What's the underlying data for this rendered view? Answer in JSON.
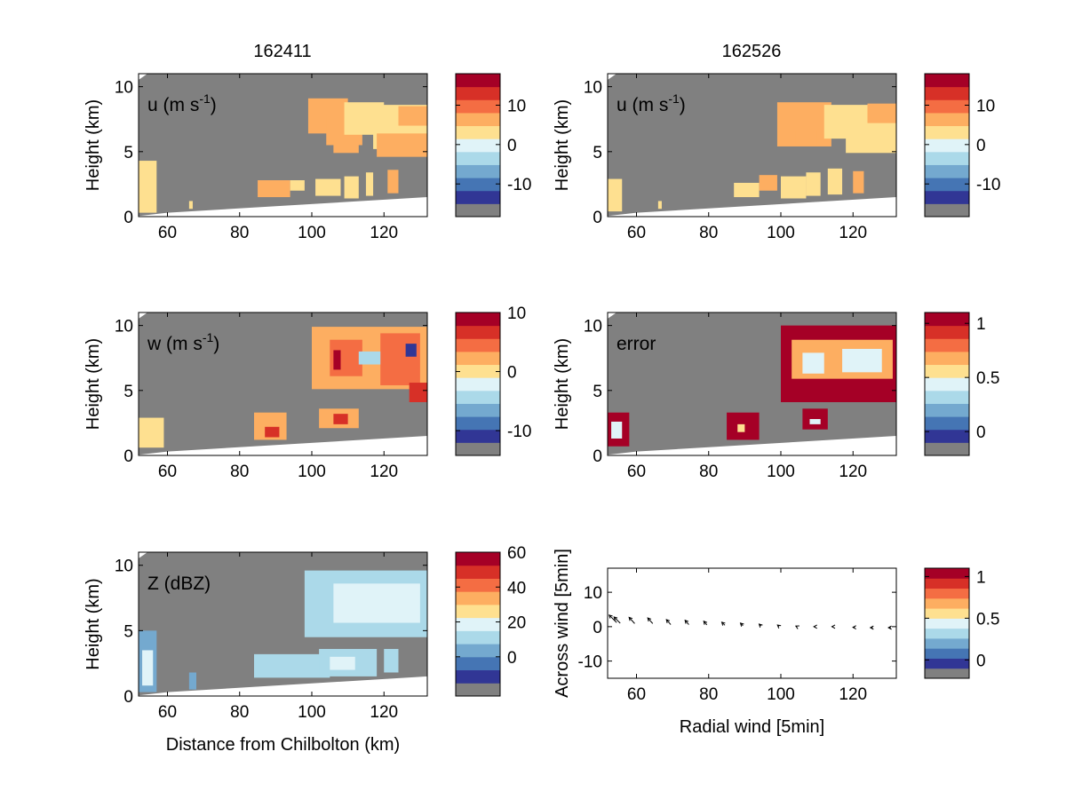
{
  "figure": {
    "column_titles": [
      "162411",
      "162526"
    ],
    "colors": {
      "background_gray": "#808080",
      "ground_white": "#ffffff",
      "colormap": [
        "#808080",
        "#313695",
        "#4575b4",
        "#74a9cf",
        "#abd9e9",
        "#e0f3f8",
        "#fee090",
        "#fdae61",
        "#f46d43",
        "#d73027",
        "#a50026"
      ]
    }
  },
  "chart_data": [
    {
      "type": "heatmap",
      "id": "u_162411",
      "title": "162411",
      "field_label": "u (m s",
      "field_label_sup": "-1",
      "field_label_end": ")",
      "xlabel": "",
      "ylabel": "Height (km)",
      "x_ticks": [
        "60",
        "80",
        "100",
        "120"
      ],
      "y_ticks": [
        "0",
        "5",
        "10"
      ],
      "xlim": [
        52,
        132
      ],
      "ylim": [
        0,
        11
      ],
      "colorbar": {
        "ticks": [
          "10",
          "0",
          "-10"
        ],
        "tick_values": [
          10,
          0,
          -10
        ],
        "range": [
          -15,
          18
        ]
      },
      "cells": [
        {
          "x0": 52,
          "x1": 57,
          "y0": 0.3,
          "y1": 4.3,
          "value": 4
        },
        {
          "x0": 66,
          "x1": 67,
          "y0": 0.6,
          "y1": 1.2,
          "value": 4
        },
        {
          "x0": 85,
          "x1": 94,
          "y0": 1.5,
          "y1": 2.8,
          "value": 5
        },
        {
          "x0": 94,
          "x1": 98,
          "y0": 2.0,
          "y1": 2.8,
          "value": 3
        },
        {
          "x0": 101,
          "x1": 108,
          "y0": 1.6,
          "y1": 2.9,
          "value": 2
        },
        {
          "x0": 109,
          "x1": 113,
          "y0": 1.4,
          "y1": 3.1,
          "value": 3
        },
        {
          "x0": 115,
          "x1": 117,
          "y0": 1.6,
          "y1": 3.4,
          "value": 2
        },
        {
          "x0": 121,
          "x1": 124,
          "y0": 1.8,
          "y1": 3.6,
          "value": 5
        },
        {
          "x0": 99,
          "x1": 110,
          "y0": 6.4,
          "y1": 9.1,
          "value": 5
        },
        {
          "x0": 104,
          "x1": 114,
          "y0": 5.5,
          "y1": 7.6,
          "value": 7
        },
        {
          "x0": 109,
          "x1": 120,
          "y0": 6.3,
          "y1": 8.8,
          "value": 2
        },
        {
          "x0": 117,
          "x1": 132,
          "y0": 5.2,
          "y1": 8.6,
          "value": 2
        },
        {
          "x0": 118,
          "x1": 132,
          "y0": 4.6,
          "y1": 6.4,
          "value": 5
        },
        {
          "x0": 124,
          "x1": 132,
          "y0": 7.0,
          "y1": 8.5,
          "value": 5
        },
        {
          "x0": 106,
          "x1": 113,
          "y0": 4.9,
          "y1": 5.9,
          "value": 7
        }
      ]
    },
    {
      "type": "heatmap",
      "id": "u_162526",
      "title": "162526",
      "field_label": "u (m s",
      "field_label_sup": "-1",
      "field_label_end": ")",
      "xlabel": "",
      "ylabel": "Height (km)",
      "x_ticks": [
        "60",
        "80",
        "100",
        "120"
      ],
      "y_ticks": [
        "0",
        "5",
        "10"
      ],
      "xlim": [
        52,
        132
      ],
      "ylim": [
        0,
        11
      ],
      "colorbar": {
        "ticks": [
          "10",
          "0",
          "-10"
        ],
        "tick_values": [
          10,
          0,
          -10
        ],
        "range": [
          -15,
          18
        ]
      },
      "cells": [
        {
          "x0": 52,
          "x1": 56,
          "y0": 0.4,
          "y1": 2.9,
          "value": 4
        },
        {
          "x0": 66,
          "x1": 67,
          "y0": 0.6,
          "y1": 1.2,
          "value": 4
        },
        {
          "x0": 87,
          "x1": 94,
          "y0": 1.5,
          "y1": 2.6,
          "value": 2
        },
        {
          "x0": 94,
          "x1": 99,
          "y0": 2.0,
          "y1": 3.2,
          "value": 5
        },
        {
          "x0": 100,
          "x1": 107,
          "y0": 1.4,
          "y1": 3.1,
          "value": 2
        },
        {
          "x0": 107,
          "x1": 111,
          "y0": 1.6,
          "y1": 3.4,
          "value": 2
        },
        {
          "x0": 113,
          "x1": 117,
          "y0": 1.7,
          "y1": 3.7,
          "value": 2
        },
        {
          "x0": 120,
          "x1": 123,
          "y0": 1.8,
          "y1": 3.5,
          "value": 5
        },
        {
          "x0": 99,
          "x1": 114,
          "y0": 5.4,
          "y1": 8.8,
          "value": 5
        },
        {
          "x0": 112,
          "x1": 124,
          "y0": 6.0,
          "y1": 8.6,
          "value": 2
        },
        {
          "x0": 118,
          "x1": 132,
          "y0": 4.9,
          "y1": 7.6,
          "value": 2
        },
        {
          "x0": 124,
          "x1": 132,
          "y0": 7.2,
          "y1": 8.7,
          "value": 5
        },
        {
          "x0": 104,
          "x1": 110,
          "y0": 5.6,
          "y1": 6.6,
          "value": 7
        }
      ]
    },
    {
      "type": "heatmap",
      "id": "w_162411",
      "field_label": "w (m s",
      "field_label_sup": "-1",
      "field_label_end": ")",
      "xlabel": "",
      "ylabel": "Height (km)",
      "x_ticks": [
        "60",
        "80",
        "100",
        "120"
      ],
      "y_ticks": [
        "0",
        "5",
        "10"
      ],
      "xlim": [
        52,
        132
      ],
      "ylim": [
        0,
        11
      ],
      "colorbar": {
        "ticks": [
          "10",
          "0",
          "-10"
        ],
        "tick_values": [
          10,
          0,
          -10
        ],
        "range": [
          -12,
          10
        ]
      },
      "cells": [
        {
          "x0": 52,
          "x1": 59,
          "y0": 0.6,
          "y1": 2.9,
          "value": 1
        },
        {
          "x0": 84,
          "x1": 93,
          "y0": 1.2,
          "y1": 3.3,
          "value": 3
        },
        {
          "x0": 87,
          "x1": 91,
          "y0": 1.4,
          "y1": 2.2,
          "value": 7
        },
        {
          "x0": 102,
          "x1": 113,
          "y0": 2.1,
          "y1": 3.6,
          "value": 2
        },
        {
          "x0": 106,
          "x1": 110,
          "y0": 2.4,
          "y1": 3.2,
          "value": 6
        },
        {
          "x0": 100,
          "x1": 132,
          "y0": 5.1,
          "y1": 9.9,
          "value": 2
        },
        {
          "x0": 105,
          "x1": 114,
          "y0": 6.1,
          "y1": 8.9,
          "value": 4
        },
        {
          "x0": 106,
          "x1": 108,
          "y0": 6.6,
          "y1": 8.1,
          "value": 9
        },
        {
          "x0": 119,
          "x1": 130,
          "y0": 5.4,
          "y1": 9.4,
          "value": 4
        },
        {
          "x0": 126,
          "x1": 129,
          "y0": 7.6,
          "y1": 8.6,
          "value": -10
        },
        {
          "x0": 113,
          "x1": 119,
          "y0": 7.0,
          "y1": 8.0,
          "value": -4
        },
        {
          "x0": 127,
          "x1": 132,
          "y0": 4.1,
          "y1": 5.6,
          "value": 7
        }
      ]
    },
    {
      "type": "heatmap",
      "id": "error_162526",
      "field_label": "error",
      "xlabel": "",
      "ylabel": "Height (km)",
      "x_ticks": [
        "60",
        "80",
        "100",
        "120"
      ],
      "y_ticks": [
        "0",
        "5",
        "10"
      ],
      "xlim": [
        52,
        132
      ],
      "ylim": [
        0,
        11
      ],
      "colorbar": {
        "ticks": [
          "1",
          "0.5",
          "0"
        ],
        "tick_values": [
          1,
          0.5,
          0
        ],
        "range": [
          -0.1,
          1.1
        ]
      },
      "cells": [
        {
          "x0": 52,
          "x1": 58,
          "y0": 0.7,
          "y1": 3.3,
          "value": 1.05
        },
        {
          "x0": 53,
          "x1": 56,
          "y0": 1.3,
          "y1": 2.6,
          "value": 0.4
        },
        {
          "x0": 85,
          "x1": 94,
          "y0": 1.2,
          "y1": 3.3,
          "value": 1.05
        },
        {
          "x0": 88,
          "x1": 90,
          "y0": 1.8,
          "y1": 2.4,
          "value": 0.6
        },
        {
          "x0": 106,
          "x1": 113,
          "y0": 2.0,
          "y1": 3.6,
          "value": 1.05
        },
        {
          "x0": 108,
          "x1": 111,
          "y0": 2.4,
          "y1": 2.8,
          "value": 0.4
        },
        {
          "x0": 100,
          "x1": 132,
          "y0": 4.1,
          "y1": 10.0,
          "value": 1.05
        },
        {
          "x0": 103,
          "x1": 131,
          "y0": 5.9,
          "y1": 8.9,
          "value": 0.7
        },
        {
          "x0": 106,
          "x1": 112,
          "y0": 6.3,
          "y1": 7.9,
          "value": 0.45
        },
        {
          "x0": 117,
          "x1": 128,
          "y0": 6.4,
          "y1": 8.2,
          "value": 0.45
        }
      ]
    },
    {
      "type": "heatmap",
      "id": "Z_162411",
      "field_label": "Z (dBZ)",
      "xlabel": "Distance from Chilbolton (km)",
      "ylabel": "Height (km)",
      "x_ticks": [
        "60",
        "80",
        "100",
        "120"
      ],
      "y_ticks": [
        "0",
        "5",
        "10"
      ],
      "xlim": [
        52,
        132
      ],
      "ylim": [
        0,
        11
      ],
      "colorbar": {
        "ticks": [
          "60",
          "40",
          "20",
          "0"
        ],
        "tick_values": [
          60,
          40,
          20,
          0
        ],
        "range": [
          -15,
          60
        ]
      },
      "cells": [
        {
          "x0": 52,
          "x1": 57,
          "y0": 0.3,
          "y1": 5.0,
          "value": 2
        },
        {
          "x0": 53,
          "x1": 56,
          "y0": 0.8,
          "y1": 3.5,
          "value": 18
        },
        {
          "x0": 66,
          "x1": 68,
          "y0": 0.5,
          "y1": 1.8,
          "value": 5
        },
        {
          "x0": 84,
          "x1": 105,
          "y0": 1.4,
          "y1": 3.2,
          "value": 8
        },
        {
          "x0": 102,
          "x1": 118,
          "y0": 1.5,
          "y1": 3.6,
          "value": 12
        },
        {
          "x0": 105,
          "x1": 112,
          "y0": 2.0,
          "y1": 3.0,
          "value": 18
        },
        {
          "x0": 120,
          "x1": 124,
          "y0": 1.8,
          "y1": 3.6,
          "value": 10
        },
        {
          "x0": 98,
          "x1": 132,
          "y0": 4.5,
          "y1": 9.6,
          "value": 10
        },
        {
          "x0": 106,
          "x1": 130,
          "y0": 5.6,
          "y1": 8.6,
          "value": 17
        },
        {
          "x0": 113,
          "x1": 123,
          "y0": 6.6,
          "y1": 8.0,
          "value": 22
        }
      ]
    },
    {
      "type": "quiver",
      "id": "wind_vectors",
      "xlabel": "Radial wind [5min]",
      "ylabel": "Across wind [5min]",
      "x_ticks": [
        "60",
        "80",
        "100",
        "120"
      ],
      "y_ticks": [
        "10",
        "0",
        "-10"
      ],
      "xlim": [
        52,
        132
      ],
      "ylim": [
        -15,
        17
      ],
      "colorbar": {
        "ticks": [
          "1",
          "0.5",
          "0"
        ],
        "tick_values": [
          1,
          0.5,
          0
        ],
        "range": [
          -0.1,
          1.1
        ]
      },
      "arrows": [
        {
          "x": 54.5,
          "y": 1.2,
          "u": -1.2,
          "v": 1.2
        },
        {
          "x": 55.5,
          "y": 1.0,
          "u": -1.0,
          "v": 1.0
        },
        {
          "x": 59.5,
          "y": 0.9,
          "u": -0.9,
          "v": 1.0
        },
        {
          "x": 64.5,
          "y": 0.9,
          "u": -0.8,
          "v": 0.9
        },
        {
          "x": 69.5,
          "y": 0.6,
          "u": -0.7,
          "v": 0.8
        },
        {
          "x": 74.5,
          "y": 0.6,
          "u": -0.6,
          "v": 0.7
        },
        {
          "x": 79.5,
          "y": 0.5,
          "u": -0.5,
          "v": 0.6
        },
        {
          "x": 84.5,
          "y": 0.4,
          "u": -0.5,
          "v": 0.5
        },
        {
          "x": 89.5,
          "y": 0.3,
          "u": -0.4,
          "v": 0.4
        },
        {
          "x": 94.5,
          "y": 0.2,
          "u": -0.3,
          "v": 0.3
        },
        {
          "x": 99.5,
          "y": 0.1,
          "u": -0.25,
          "v": 0.2
        },
        {
          "x": 104.5,
          "y": 0.0,
          "u": -0.2,
          "v": 0.1
        },
        {
          "x": 109.5,
          "y": 0.0,
          "u": -0.2,
          "v": 0.0
        },
        {
          "x": 114.5,
          "y": 0.0,
          "u": -0.2,
          "v": 0.0
        },
        {
          "x": 120.5,
          "y": -0.2,
          "u": -0.3,
          "v": 0.0
        },
        {
          "x": 125.5,
          "y": -0.3,
          "u": -0.4,
          "v": 0.0
        },
        {
          "x": 130.5,
          "y": -0.3,
          "u": -0.4,
          "v": 0.0
        }
      ]
    }
  ]
}
